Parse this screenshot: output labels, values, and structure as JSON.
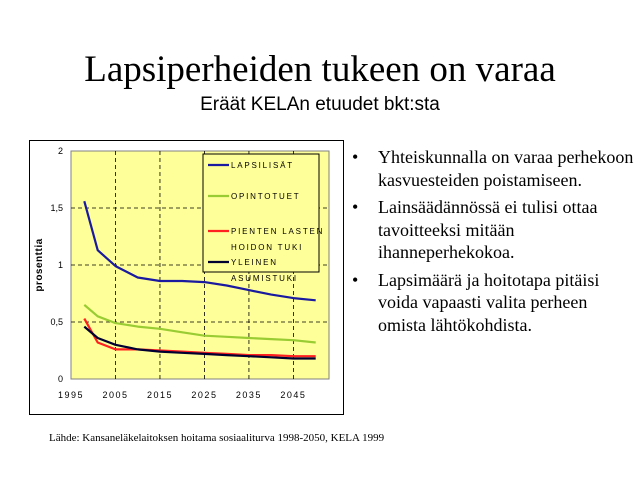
{
  "slide": {
    "title": "Lapsiperheiden tukeen on varaa",
    "subtitle": "Eräät KELAn etuudet bkt:sta",
    "bullets": [
      "Yhteiskunnalla on varaa perhekoon kasvuesteiden poistamiseen.",
      "Lainsäädännössä ei tulisi ottaa tavoitteeksi mitään ihanneperhekokoa.",
      "Lapsimäärä ja hoitotapa pitäisi voida vapaasti valita perheen omista lähtökohdista."
    ],
    "bullet_symbol": "•",
    "source": "Lähde: Kansaneläkelaitoksen hoitama sosiaaliturva 1998-2050, KELA 1999"
  },
  "chart_data": {
    "type": "line",
    "ylabel": "prosenttia",
    "xlabel": "",
    "ylim": [
      0,
      2
    ],
    "xlim": [
      1995,
      2053
    ],
    "yticks": [
      "0",
      "0,5",
      "1",
      "1,5",
      "2"
    ],
    "ytick_values": [
      0,
      0.5,
      1,
      1.5,
      2
    ],
    "xticks": [
      "1995",
      "2005",
      "2015",
      "2025",
      "2035",
      "2045"
    ],
    "xtick_values": [
      1995,
      2005,
      2015,
      2025,
      2035,
      2045
    ],
    "grid": "dashed",
    "plot_background": "#ffff99",
    "legend_position": "top-right",
    "x": [
      1998,
      2001,
      2005,
      2010,
      2015,
      2020,
      2025,
      2030,
      2035,
      2040,
      2045,
      2050
    ],
    "series": [
      {
        "name": "LAPSILISÄT",
        "legend_lines": [
          "LAPSILISÄT"
        ],
        "color": "#1a1aa0",
        "values": [
          1.56,
          1.13,
          0.99,
          0.89,
          0.86,
          0.86,
          0.85,
          0.82,
          0.78,
          0.74,
          0.71,
          0.69
        ]
      },
      {
        "name": "OPINTOTUET",
        "legend_lines": [
          "OPINTOTUET"
        ],
        "color": "#99cc33",
        "values": [
          0.65,
          0.55,
          0.49,
          0.46,
          0.44,
          0.41,
          0.38,
          0.37,
          0.36,
          0.35,
          0.34,
          0.32
        ]
      },
      {
        "name": "PIENTEN LASTEN HOIDON TUKI",
        "legend_lines": [
          "PIENTEN LASTEN",
          "HOIDON TUKI"
        ],
        "color": "#ff2020",
        "values": [
          0.53,
          0.32,
          0.26,
          0.26,
          0.25,
          0.24,
          0.23,
          0.22,
          0.21,
          0.21,
          0.2,
          0.2
        ]
      },
      {
        "name": "YLEINEN ASUMISTUKI",
        "legend_lines": [
          "YLEINEN",
          "ASUMISTUKI"
        ],
        "color": "#000033",
        "values": [
          0.46,
          0.36,
          0.3,
          0.26,
          0.24,
          0.23,
          0.22,
          0.21,
          0.2,
          0.19,
          0.18,
          0.18
        ]
      }
    ]
  }
}
